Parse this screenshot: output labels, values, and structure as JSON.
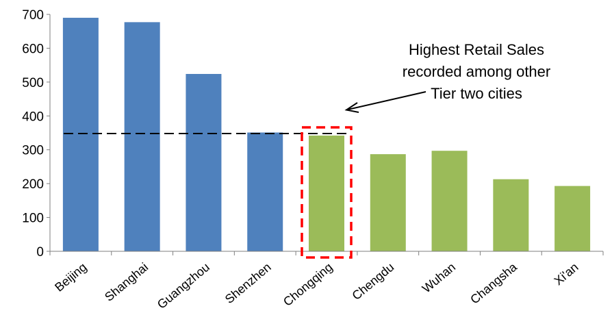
{
  "chart_data": {
    "type": "bar",
    "categories": [
      "Beijing",
      "Shanghai",
      "Guangzhou",
      "Shenzhen",
      "Chongqing",
      "Chengdu",
      "Wuhan",
      "Changsha",
      "Xi'an"
    ],
    "values": [
      690,
      677,
      524,
      351,
      342,
      287,
      297,
      213,
      193
    ],
    "bar_colors": [
      "#4f81bd",
      "#4f81bd",
      "#4f81bd",
      "#4f81bd",
      "#9bbb59",
      "#9bbb59",
      "#9bbb59",
      "#9bbb59",
      "#9bbb59"
    ],
    "ylim": [
      0,
      700
    ],
    "yticks": [
      0,
      100,
      200,
      300,
      400,
      500,
      600,
      700
    ],
    "grid": false,
    "reference_line": {
      "value": 348,
      "style": "dashed",
      "color": "#000000"
    },
    "highlight": {
      "category": "Chongqing",
      "style": "dashed-box",
      "color": "#ff0000"
    },
    "annotation": {
      "lines": [
        "Highest Retail Sales",
        "recorded among other",
        "Tier two cities"
      ],
      "arrow_target": "Chongqing"
    }
  }
}
